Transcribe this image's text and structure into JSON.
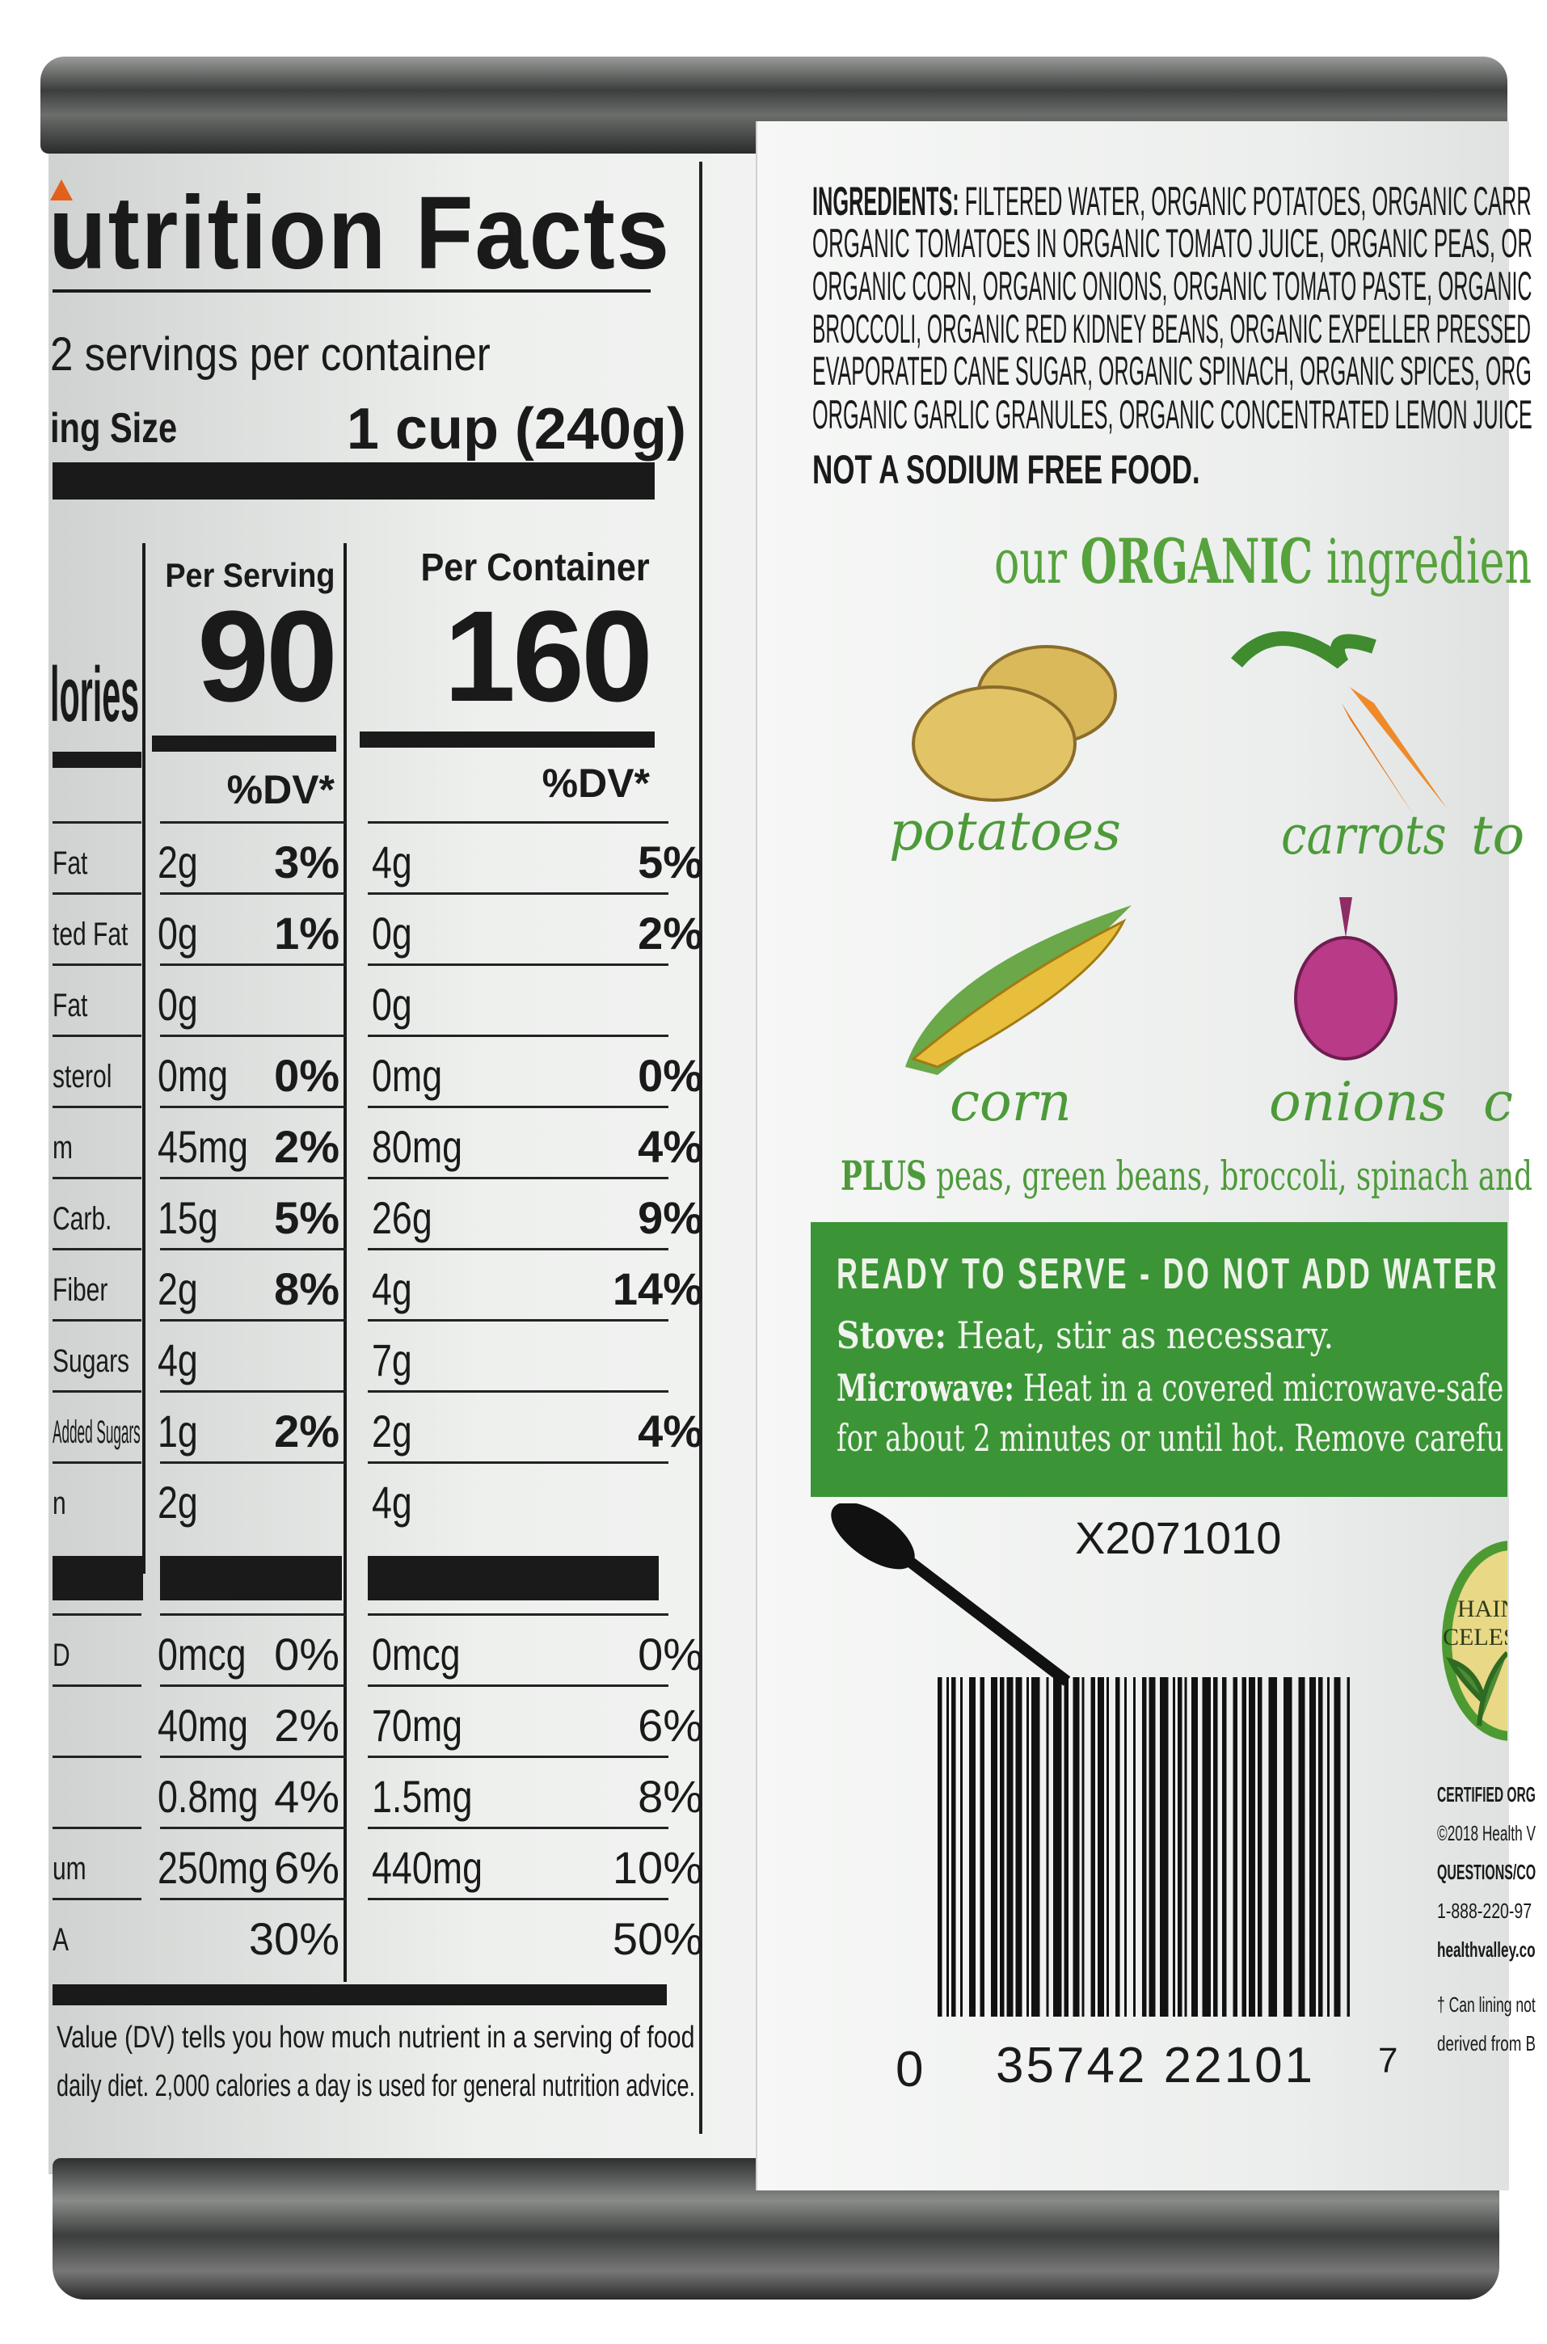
{
  "nutrition_facts": {
    "title": "utrition Facts",
    "servings": "2 servings per container",
    "serving_size_label": "ing Size",
    "serving_size_value": "1 cup (240g)",
    "calories_label": "lories",
    "per_serving_label": "Per Serving",
    "per_container_label": "Per Container",
    "calories_serving": "90",
    "calories_container": "160",
    "dv_header": "%DV*",
    "rows": [
      {
        "label": "Fat",
        "serving": "2g",
        "serving_dv": "3%",
        "container": "4g",
        "container_dv": "5%"
      },
      {
        "label": "ted Fat",
        "serving": "0g",
        "serving_dv": "1%",
        "container": "0g",
        "container_dv": "2%"
      },
      {
        "label": "Fat",
        "serving": "0g",
        "serving_dv": "",
        "container": "0g",
        "container_dv": ""
      },
      {
        "label": "sterol",
        "serving": "0mg",
        "serving_dv": "0%",
        "container": "0mg",
        "container_dv": "0%"
      },
      {
        "label": "m",
        "serving": "45mg",
        "serving_dv": "2%",
        "container": "80mg",
        "container_dv": "4%"
      },
      {
        "label": "Carb.",
        "serving": "15g",
        "serving_dv": "5%",
        "container": "26g",
        "container_dv": "9%"
      },
      {
        "label": "Fiber",
        "serving": "2g",
        "serving_dv": "8%",
        "container": "4g",
        "container_dv": "14%"
      },
      {
        "label": "Sugars",
        "serving": "4g",
        "serving_dv": "",
        "container": "7g",
        "container_dv": ""
      },
      {
        "label": "Added Sugars",
        "serving": "1g",
        "serving_dv": "2%",
        "container": "2g",
        "container_dv": "4%"
      },
      {
        "label": "n",
        "serving": "2g",
        "serving_dv": "",
        "container": "4g",
        "container_dv": ""
      }
    ],
    "vitamin_rows": [
      {
        "label": "D",
        "serving": "0mcg",
        "serving_dv": "0%",
        "container": "0mcg",
        "container_dv": "0%"
      },
      {
        "label": "",
        "serving": "40mg",
        "serving_dv": "2%",
        "container": "70mg",
        "container_dv": "6%"
      },
      {
        "label": "",
        "serving": "0.8mg",
        "serving_dv": "4%",
        "container": "1.5mg",
        "container_dv": "8%"
      },
      {
        "label": "um",
        "serving": "250mg",
        "serving_dv": "6%",
        "container": "440mg",
        "container_dv": "10%"
      },
      {
        "label": "A",
        "serving": "",
        "serving_dv": "30%",
        "container": "",
        "container_dv": "50%"
      }
    ],
    "footnote_1": "Value (DV) tells you how much nutrient in a serving of food",
    "footnote_2": "daily diet. 2,000 calories a day is used for general nutrition advice."
  },
  "ingredients": {
    "heading": "INGREDIENTS:",
    "lines": [
      "FILTERED WATER, ORGANIC POTATOES, ORGANIC CARR",
      "ORGANIC TOMATOES IN ORGANIC TOMATO JUICE, ORGANIC PEAS, OR",
      "ORGANIC CORN, ORGANIC ONIONS, ORGANIC TOMATO PASTE, ORGANIC",
      "BROCCOLI, ORGANIC RED KIDNEY BEANS, ORGANIC EXPELLER PRESSED",
      "EVAPORATED CANE SUGAR, ORGANIC SPINACH, ORGANIC SPICES, ORG",
      "ORGANIC GARLIC GRANULES, ORGANIC CONCENTRATED LEMON JUICE"
    ],
    "warning": "NOT A SODIUM FREE FOOD."
  },
  "organic": {
    "pre": "our",
    "bold": "ORGANIC",
    "post": "ingredien",
    "veggies": [
      "potatoes",
      "carrots",
      "corn",
      "onions"
    ],
    "partial_1": "to",
    "partial_2": "c",
    "plus_bold": "PLUS",
    "plus_text": "peas, green beans, broccoli, spinach and"
  },
  "directions": {
    "title": "READY TO SERVE - DO NOT ADD WATER",
    "stove_label": "Stove:",
    "stove_text": "Heat, stir as necessary.",
    "microwave_label": "Microwave:",
    "microwave_text": "Heat in a covered microwave-safe",
    "microwave_text_2": "for about 2 minutes or until hot. Remove carefu"
  },
  "lot_code": "X2071010",
  "barcode": {
    "left": "0",
    "middle": "35742 22101",
    "right": "7"
  },
  "logo_text": "HAIN CELESTIAL",
  "fine_print": [
    "CERTIFIED ORG",
    "©2018 Health V",
    "QUESTIONS/CO",
    "1-888-220-97",
    "healthvalley.co",
    "† Can lining not",
    "derived from B"
  ],
  "colors": {
    "green_band": "#3b9536",
    "organic_green": "#56a23c",
    "accent_orange": "#e2601c"
  }
}
